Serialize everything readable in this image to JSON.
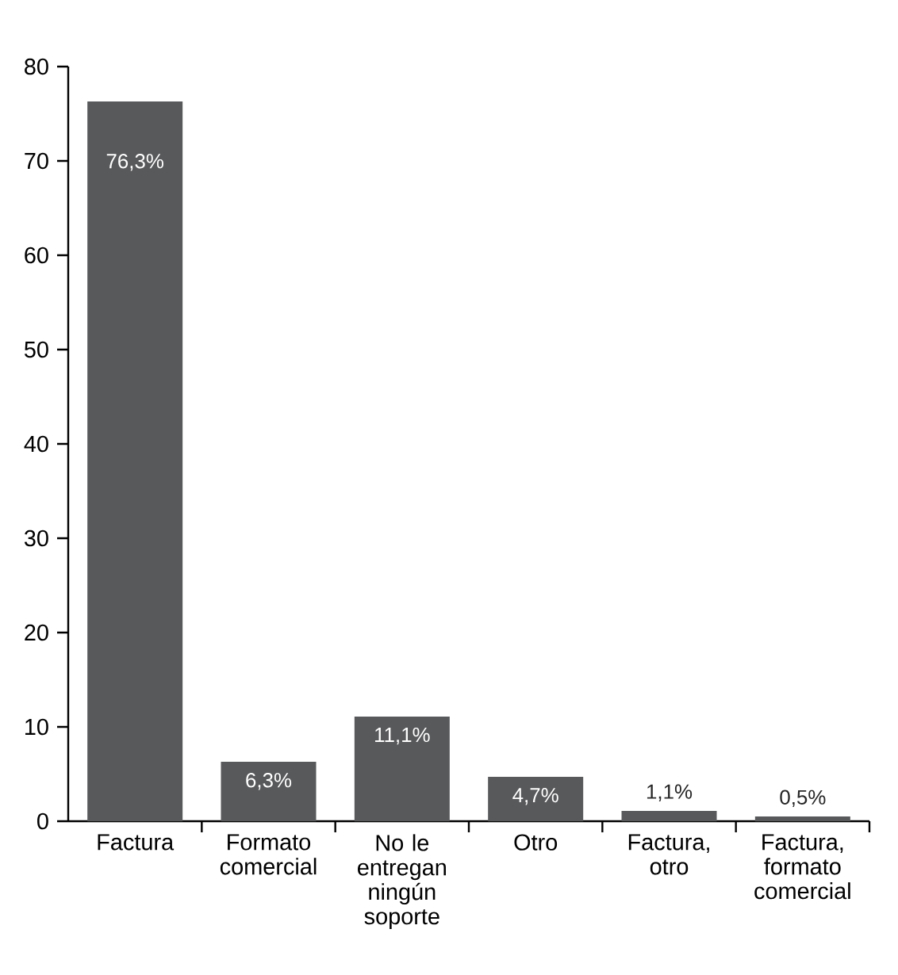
{
  "chart_data": {
    "type": "bar",
    "categories": [
      "Factura",
      "Formato comercial",
      "No le entregan ningún soporte",
      "Otro",
      "Factura, otro",
      "Factura, formato comercial"
    ],
    "values": [
      76.3,
      6.3,
      11.1,
      4.7,
      1.1,
      0.5
    ],
    "value_labels": [
      "76,3%",
      "6,3%",
      "11,1%",
      "4,7%",
      "1,1%",
      "0,5%"
    ],
    "color": "#58595b",
    "ylim": [
      0,
      80
    ],
    "yticks": [
      0,
      10,
      20,
      30,
      40,
      50,
      60,
      70,
      80
    ],
    "grid": false
  }
}
